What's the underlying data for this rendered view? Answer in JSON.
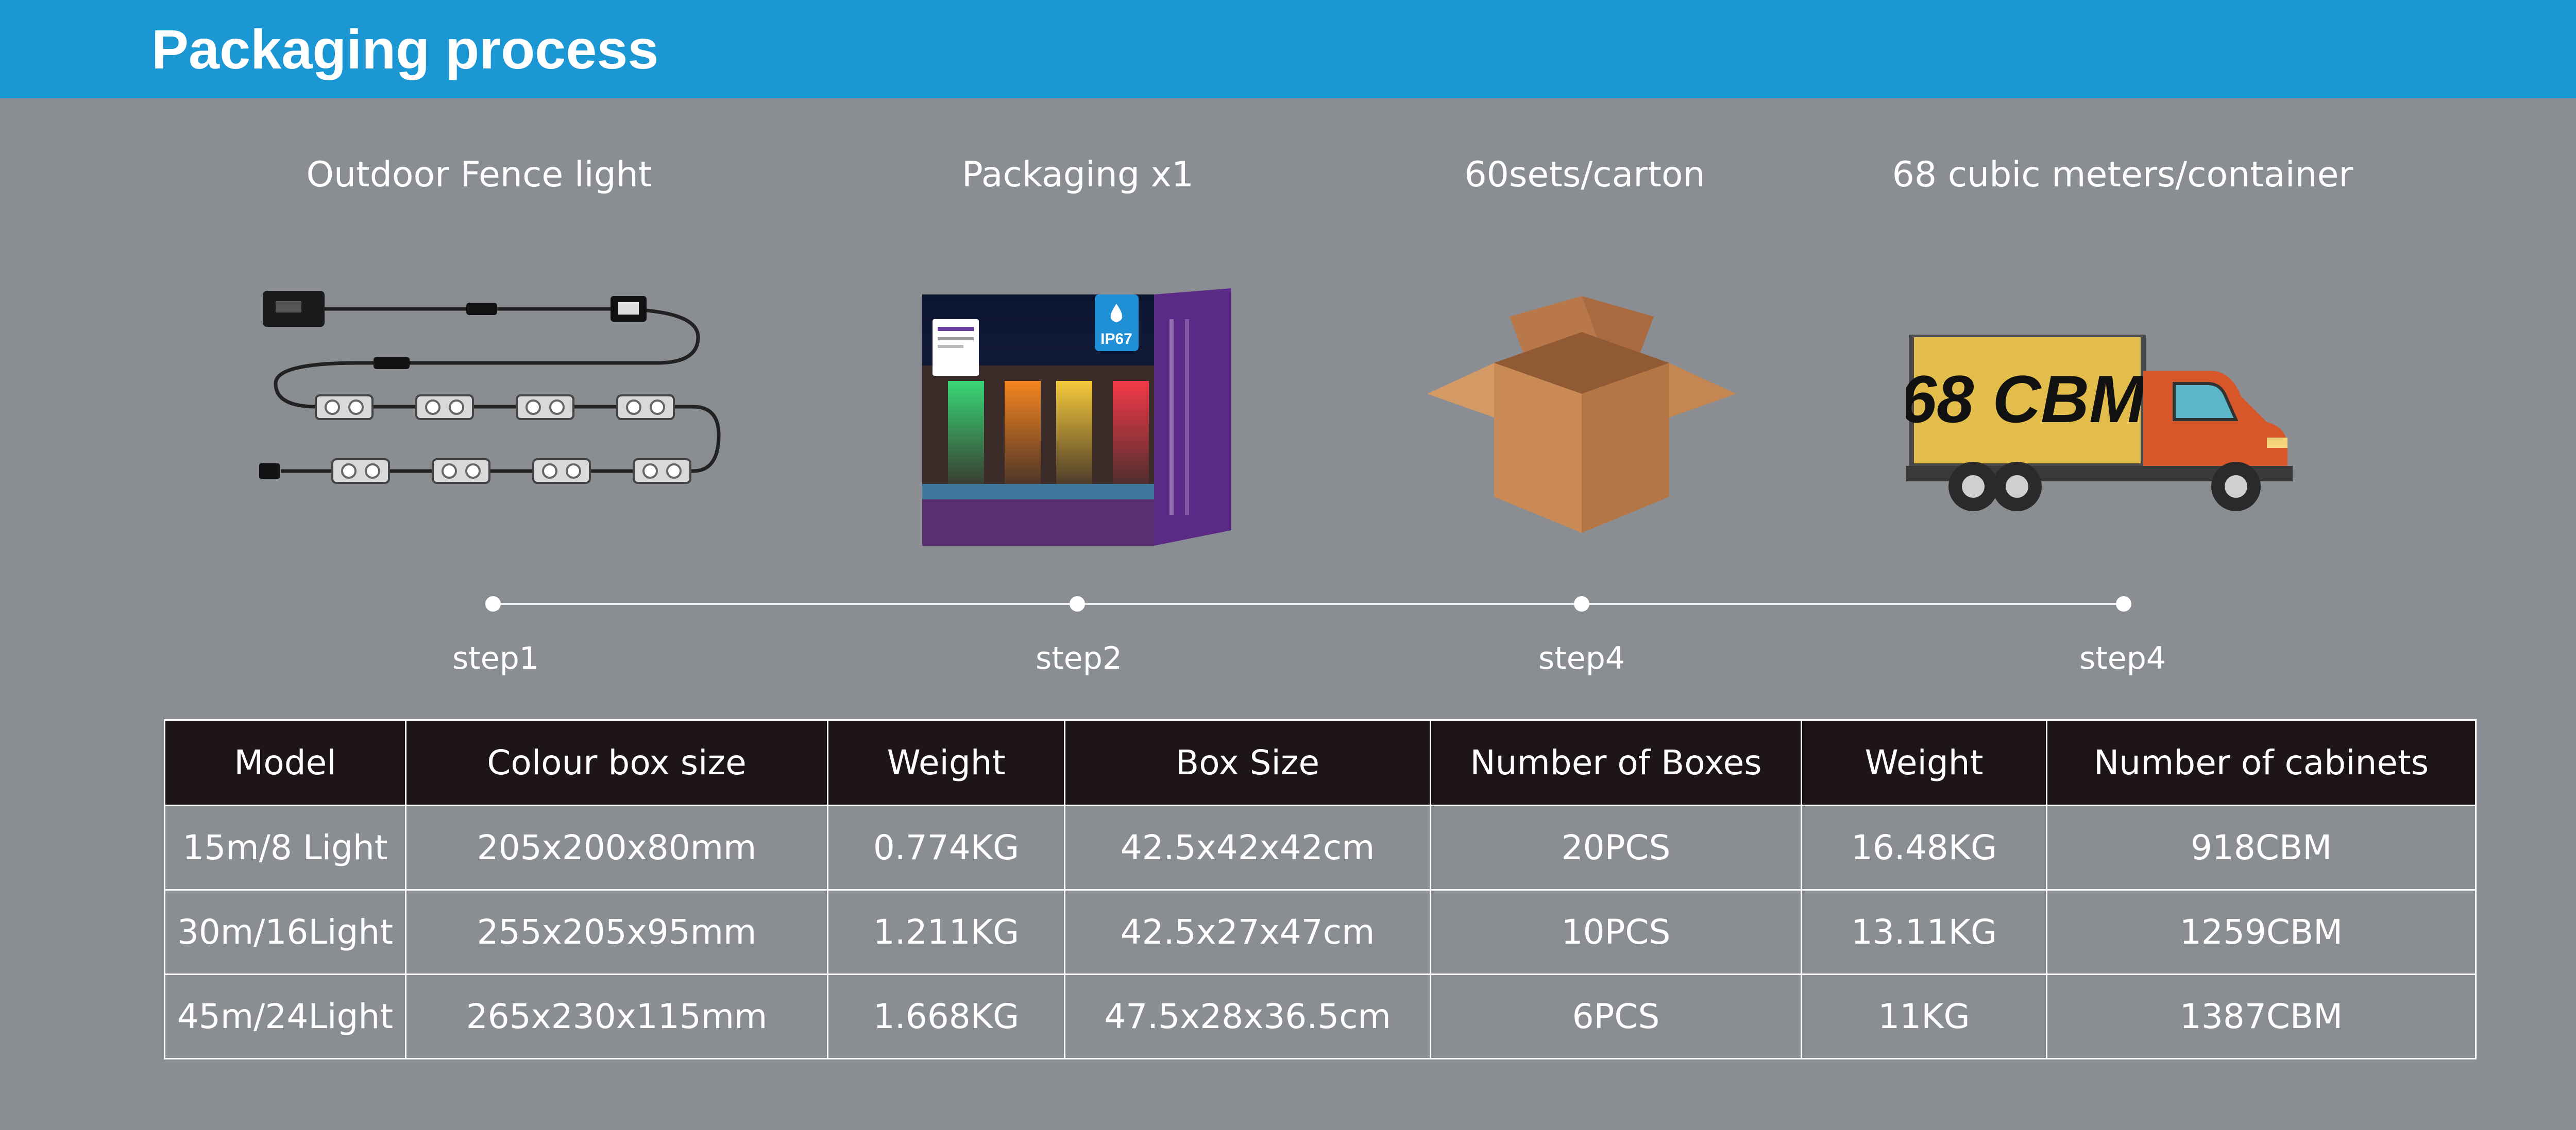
{
  "header": {
    "title": "Packaging process"
  },
  "steps": [
    {
      "title": "Outdoor Fence light",
      "label": "step1"
    },
    {
      "title": "Packaging x1",
      "label": "step2"
    },
    {
      "title": "60sets/carton",
      "label": "step4"
    },
    {
      "title": "68 cubic meters/container",
      "label": "step4"
    }
  ],
  "box_badge": "IP67",
  "truck_text": "68 CBM",
  "table": {
    "headers": [
      "Model",
      "Colour box size",
      "Weight",
      "Box Size",
      "Number of Boxes",
      "Weight",
      "Number of cabinets"
    ],
    "rows": [
      [
        "15m/8 Light",
        "205x200x80mm",
        "0.774KG",
        "42.5x42x42cm",
        "20PCS",
        "16.48KG",
        "918CBM"
      ],
      [
        "30m/16Light",
        "255x205x95mm",
        "1.211KG",
        "42.5x27x47cm",
        "10PCS",
        "13.11KG",
        "1259CBM"
      ],
      [
        "45m/24Light",
        "265x230x115mm",
        "1.668KG",
        "47.5x28x36.5cm",
        "6PCS",
        "11KG",
        "1387CBM"
      ]
    ]
  },
  "colors": {
    "header_bg": "#1b97d3",
    "page_bg": "#8a8d92",
    "table_header_bg": "#1e1516",
    "truck_cargo": "#e2bd4c",
    "truck_cab": "#d8572a",
    "carton": "#c98a55"
  }
}
